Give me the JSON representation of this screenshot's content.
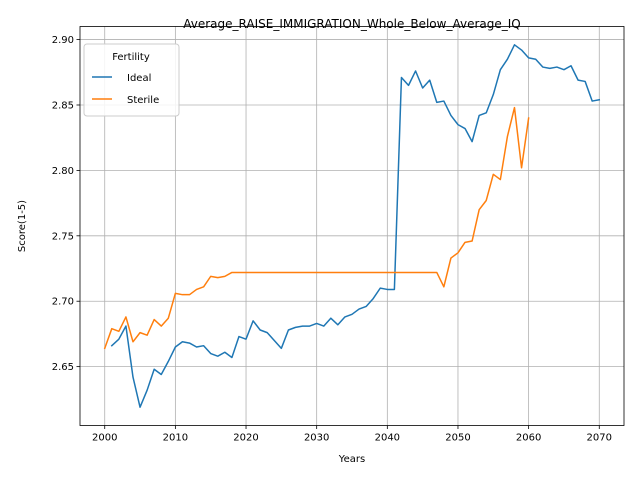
{
  "chart_data": {
    "type": "line",
    "title": "Average_RAISE_IMMIGRATION_Whole_Below_Average_IQ",
    "xlabel": "Years",
    "ylabel": "Score(1-5)",
    "xlim": [
      1996.5,
      2073.5
    ],
    "ylim": [
      2.605,
      2.91
    ],
    "xticks": [
      2000,
      2010,
      2020,
      2030,
      2040,
      2050,
      2060,
      2070
    ],
    "xtick_labels": [
      "2000",
      "2010",
      "2020",
      "2030",
      "2040",
      "2050",
      "2060",
      "2070"
    ],
    "yticks": [
      2.65,
      2.7,
      2.75,
      2.8,
      2.85,
      2.9
    ],
    "ytick_labels": [
      "2.65",
      "2.70",
      "2.75",
      "2.80",
      "2.85",
      "2.90"
    ],
    "grid": true,
    "legend": {
      "title": "Fertility",
      "location": "upper-left"
    },
    "series": [
      {
        "name": "Ideal",
        "color": "#1f77b4",
        "x": [
          2001,
          2002,
          2003,
          2004,
          2005,
          2006,
          2007,
          2008,
          2009,
          2010,
          2011,
          2012,
          2013,
          2014,
          2015,
          2016,
          2017,
          2018,
          2019,
          2020,
          2021,
          2022,
          2023,
          2024,
          2025,
          2026,
          2027,
          2028,
          2029,
          2030,
          2031,
          2032,
          2033,
          2034,
          2035,
          2036,
          2037,
          2038,
          2039,
          2040,
          2041,
          2042,
          2043,
          2044,
          2045,
          2046,
          2047,
          2048,
          2049,
          2050,
          2051,
          2052,
          2053,
          2054,
          2055,
          2056,
          2057,
          2058,
          2059,
          2060,
          2061,
          2062,
          2063,
          2064,
          2065,
          2066,
          2067,
          2068,
          2069,
          2070
        ],
        "y": [
          2.666,
          2.671,
          2.681,
          2.642,
          2.619,
          2.632,
          2.648,
          2.644,
          2.654,
          2.665,
          2.669,
          2.668,
          2.665,
          2.666,
          2.66,
          2.658,
          2.661,
          2.657,
          2.673,
          2.671,
          2.685,
          2.678,
          2.676,
          2.67,
          2.664,
          2.678,
          2.68,
          2.681,
          2.681,
          2.683,
          2.681,
          2.687,
          2.682,
          2.688,
          2.69,
          2.694,
          2.696,
          2.702,
          2.71,
          2.709,
          2.709,
          2.871,
          2.865,
          2.876,
          2.863,
          2.869,
          2.852,
          2.853,
          2.842,
          2.835,
          2.832,
          2.822,
          2.842,
          2.844,
          2.858,
          2.877,
          2.885,
          2.896,
          2.892,
          2.886,
          2.885,
          2.879,
          2.878,
          2.879,
          2.877,
          2.88,
          2.869,
          2.868,
          2.853,
          2.854
        ]
      },
      {
        "name": "Sterile",
        "color": "#ff7f0e",
        "x": [
          2000,
          2001,
          2002,
          2003,
          2004,
          2005,
          2006,
          2007,
          2008,
          2009,
          2010,
          2011,
          2012,
          2013,
          2014,
          2015,
          2016,
          2017,
          2018,
          2019,
          2020,
          2021,
          2022,
          2023,
          2024,
          2025,
          2026,
          2027,
          2028,
          2029,
          2030,
          2031,
          2032,
          2033,
          2034,
          2035,
          2036,
          2037,
          2038,
          2039,
          2040,
          2041,
          2042,
          2043,
          2044,
          2045,
          2046,
          2047,
          2048,
          2049,
          2050,
          2051,
          2052,
          2053,
          2054,
          2055,
          2056,
          2057,
          2058,
          2059,
          2060
        ],
        "y": [
          2.664,
          2.679,
          2.677,
          2.688,
          2.669,
          2.676,
          2.674,
          2.686,
          2.681,
          2.687,
          2.706,
          2.705,
          2.705,
          2.709,
          2.711,
          2.719,
          2.718,
          2.719,
          2.722,
          2.722,
          2.722,
          2.722,
          2.722,
          2.722,
          2.722,
          2.722,
          2.722,
          2.722,
          2.722,
          2.722,
          2.722,
          2.722,
          2.722,
          2.722,
          2.722,
          2.722,
          2.722,
          2.722,
          2.722,
          2.722,
          2.722,
          2.722,
          2.722,
          2.722,
          2.722,
          2.722,
          2.722,
          2.722,
          2.711,
          2.733,
          2.737,
          2.745,
          2.746,
          2.77,
          2.777,
          2.797,
          2.793,
          2.826,
          2.848,
          2.802,
          2.84
        ]
      }
    ]
  }
}
